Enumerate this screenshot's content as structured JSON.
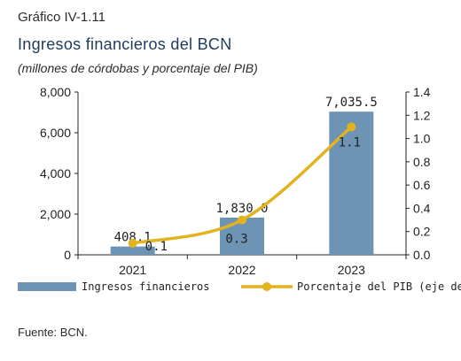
{
  "figure_label": "Gráfico IV-1.11",
  "title": "Ingresos financieros del BCN",
  "subtitle": "(millones de córdobas y porcentaje del PIB)",
  "source": "Fuente: BCN.",
  "chart_data": {
    "type": "bar",
    "categories": [
      "2021",
      "2022",
      "2023"
    ],
    "series": [
      {
        "name": "Ingresos financieros",
        "type": "bar",
        "axis": "left",
        "values": [
          408.1,
          1830.0,
          7035.5
        ],
        "labels": [
          "408.1",
          "1,830.0",
          "7,035.5"
        ],
        "color": "#6d93b5"
      },
      {
        "name": "Porcentaje del PIB (eje der.)",
        "type": "line",
        "axis": "right",
        "values": [
          0.1,
          0.3,
          1.1
        ],
        "labels": [
          "0.1",
          "0.3",
          "1.1"
        ],
        "color": "#e3b21f"
      }
    ],
    "y_left": {
      "min": 0,
      "max": 8000,
      "ticks": [
        0,
        2000,
        4000,
        6000,
        8000
      ],
      "tick_labels": [
        "0",
        "2,000",
        "4,000",
        "6,000",
        "8,000"
      ]
    },
    "y_right": {
      "min": 0,
      "max": 1.4,
      "ticks": [
        0,
        0.2,
        0.4,
        0.6,
        0.8,
        1.0,
        1.2,
        1.4
      ],
      "tick_labels": [
        "0.0",
        "0.2",
        "0.4",
        "0.6",
        "0.8",
        "1.0",
        "1.2",
        "1.4"
      ]
    },
    "grid": false,
    "legend_position": "bottom"
  }
}
